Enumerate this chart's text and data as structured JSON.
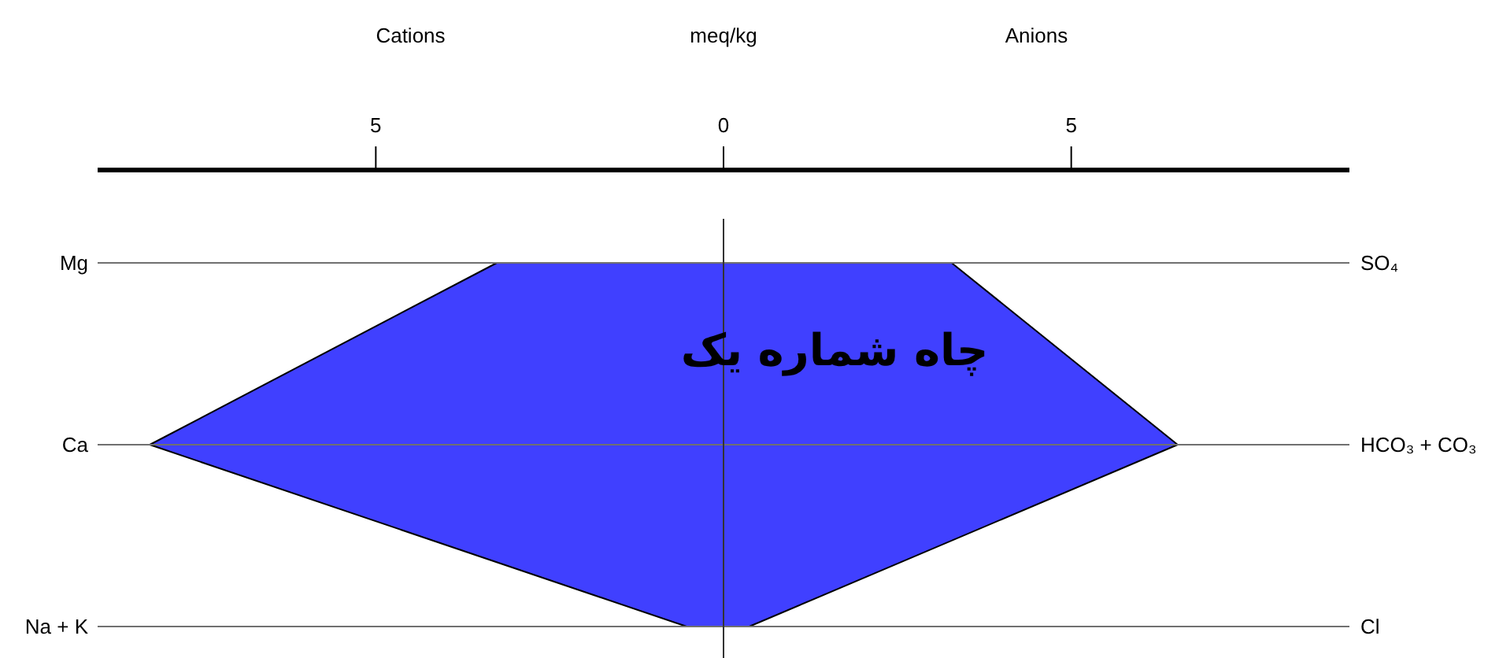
{
  "chart_data": {
    "type": "area",
    "orientation": "horizontal",
    "title": "چاه شماره یک",
    "xlabel": "meq/kg",
    "annotations": [
      "Cations",
      "Anions"
    ],
    "categories": [
      "Mg",
      "Ca",
      "Na + K"
    ],
    "y2_categories": [
      "SO₄",
      "HCO₃ + CO₃",
      "Cl"
    ],
    "series": [
      {
        "color": "#4040ff",
        "values": [
          -3.26,
          -8.25,
          -0.53
        ]
      },
      {
        "color": "#4040ff",
        "values": [
          3.28,
          6.53,
          0.37
        ]
      }
    ],
    "xlim": [
      -9,
      9
    ],
    "xticks": [
      {
        "value": -5,
        "label": "5"
      },
      0,
      5
    ],
    "grid": "y",
    "ref_lines": [
      {
        "axis": "x",
        "value": 0
      }
    ]
  }
}
